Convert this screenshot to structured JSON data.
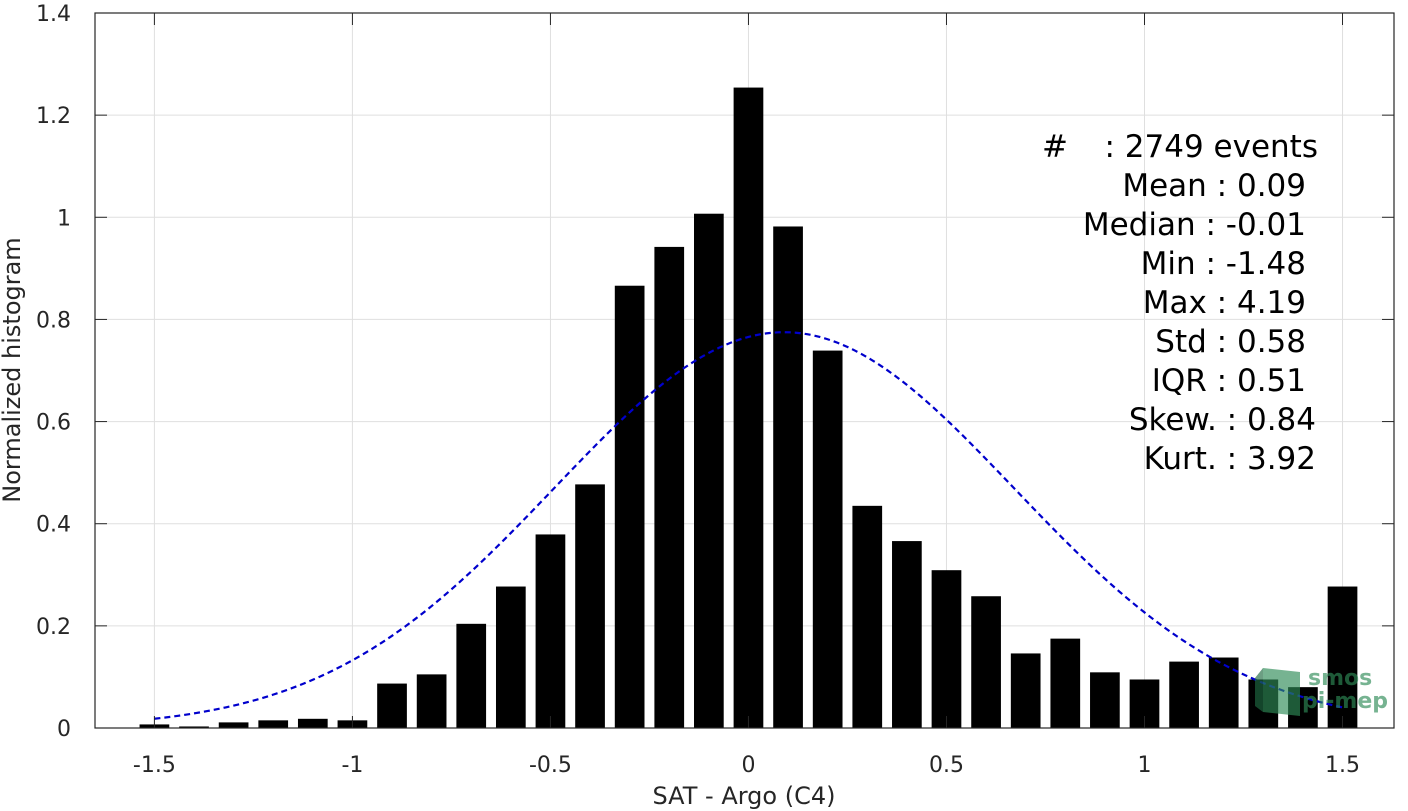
{
  "chart_data": {
    "type": "bar",
    "xlabel": "SAT - Argo (C4)",
    "ylabel": "Normalized histogram",
    "xlim": [
      -1.65,
      1.63
    ],
    "ylim": [
      0,
      1.4
    ],
    "xticks": [
      "-1.5",
      "-1",
      "-0.5",
      "0",
      "0.5",
      "1",
      "1.5"
    ],
    "yticks": [
      "0",
      "0.2",
      "0.4",
      "0.6",
      "0.8",
      "1",
      "1.2",
      "1.4"
    ],
    "grid": true,
    "bar_width": 0.075,
    "bars": {
      "x": [
        -1.5,
        -1.4,
        -1.3,
        -1.2,
        -1.1,
        -1.0,
        -0.9,
        -0.8,
        -0.7,
        -0.6,
        -0.5,
        -0.4,
        -0.3,
        -0.2,
        -0.1,
        0.0,
        0.1,
        0.2,
        0.3,
        0.4,
        0.5,
        0.6,
        0.7,
        0.8,
        0.9,
        1.0,
        1.1,
        1.2,
        1.3,
        1.4,
        1.5
      ],
      "values": [
        0.007,
        0.003,
        0.011,
        0.015,
        0.018,
        0.015,
        0.087,
        0.105,
        0.204,
        0.277,
        0.379,
        0.477,
        0.866,
        0.942,
        1.007,
        1.254,
        0.982,
        0.739,
        0.435,
        0.366,
        0.309,
        0.258,
        0.146,
        0.175,
        0.109,
        0.095,
        0.13,
        0.138,
        0.095,
        0.08,
        0.277
      ],
      "color": "#000000"
    },
    "fit": {
      "type": "gaussian",
      "mean": 0.09,
      "std": 0.58,
      "peak": 0.775,
      "x_range": [
        -1.5,
        1.5
      ],
      "style": "dashed",
      "color": "#0000cc"
    },
    "annotations": {
      "count_symbol": "#",
      "count_value": " : 2749 events",
      "rows": [
        {
          "label": "Mean",
          "value": " : 0.09"
        },
        {
          "label": "Median",
          "value": " : -0.01"
        },
        {
          "label": "Min",
          "value": " : -1.48"
        },
        {
          "label": "Max",
          "value": " : 4.19"
        },
        {
          "label": "Std",
          "value": " : 0.58"
        },
        {
          "label": "IQR",
          "value": " : 0.51"
        },
        {
          "label": "Skew.",
          "value": " : 0.84"
        },
        {
          "label": "Kurt.",
          "value": " : 3.92"
        }
      ]
    },
    "watermark": {
      "line1": "smos",
      "line2": "pi-mep",
      "color": "#2e8b57"
    }
  }
}
